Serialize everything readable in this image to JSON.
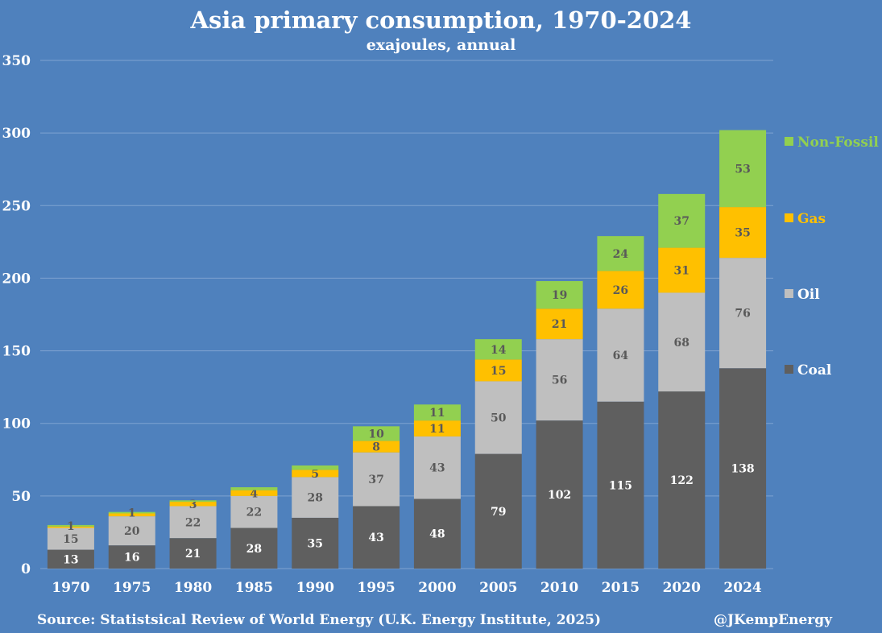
{
  "title": "Asia primary consumption, 1970-2024",
  "subtitle": "exajoules, annual",
  "source": "Source: Statistsical Review of World Energy (U.K. Energy Institute, 2025)",
  "credit": "@JKempEnergy",
  "colors": {
    "background": "#4f81bd",
    "gridline": "#7fa3d1",
    "Coal": "#5f5f5f",
    "Oil": "#bfbfbf",
    "Gas": "#ffc000",
    "Non-Fossil": "#92d050"
  },
  "chart_data": {
    "type": "bar",
    "stacked": true,
    "title": "Asia primary consumption, 1970-2024",
    "subtitle": "exajoules, annual",
    "xlabel": "",
    "ylabel": "",
    "ylim": [
      0,
      350
    ],
    "yticks": [
      0,
      50,
      100,
      150,
      200,
      250,
      300,
      350
    ],
    "grid": true,
    "legend_position": "right",
    "categories": [
      "1970",
      "1975",
      "1980",
      "1985",
      "1990",
      "1995",
      "2000",
      "2005",
      "2010",
      "2015",
      "2020",
      "2024"
    ],
    "series": [
      {
        "name": "Coal",
        "values": [
          13,
          16,
          21,
          28,
          35,
          43,
          48,
          79,
          102,
          115,
          122,
          138
        ]
      },
      {
        "name": "Oil",
        "values": [
          15,
          20,
          22,
          22,
          28,
          37,
          43,
          50,
          56,
          64,
          68,
          76
        ]
      },
      {
        "name": "Gas",
        "values": [
          1,
          2,
          3,
          4,
          5,
          8,
          11,
          15,
          21,
          26,
          31,
          35
        ],
        "labels": [
          "",
          "",
          "3",
          "4",
          "5",
          "8",
          "11",
          "15",
          "21",
          "26",
          "31",
          "35"
        ]
      },
      {
        "name": "Non-Fossil",
        "values": [
          1,
          1,
          1,
          2,
          3,
          10,
          11,
          14,
          19,
          24,
          37,
          53
        ],
        "labels": [
          "1",
          "1",
          "",
          "",
          "",
          "10",
          "11",
          "14",
          "19",
          "24",
          "37",
          "53"
        ]
      }
    ],
    "legend": [
      "Non-Fossil",
      "Gas",
      "Oil",
      "Coal"
    ]
  }
}
